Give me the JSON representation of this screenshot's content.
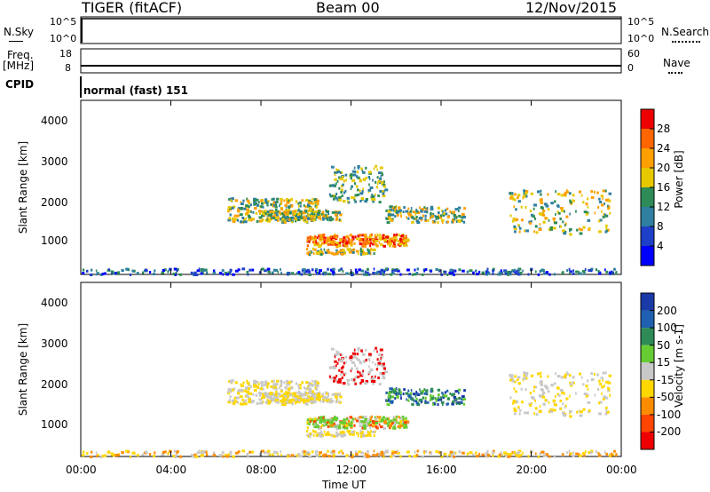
{
  "header": {
    "station": "TIGER (fitACF)",
    "beam": "Beam 00",
    "date": "12/Nov/2015"
  },
  "top_panels": {
    "nsky_label": "N.Sky",
    "nsky_ticks": [
      "10^5",
      "10^0"
    ],
    "nsearch_label": "N.Search",
    "nsearch_ticks": [
      "10^5",
      "10^0"
    ],
    "freq_label": "Freq.",
    "freq_unit": "[MHz]",
    "freq_ticks": [
      "18",
      "8"
    ],
    "nave_label": "Nave",
    "nave_ticks": [
      "60",
      "0"
    ],
    "cpid_label": "CPID",
    "cpid_value": "normal (fast) 151"
  },
  "chart_data": [
    {
      "type": "heatmap",
      "name": "power",
      "ylabel": "Slant Range [km]",
      "yticks": [
        "4000",
        "3000",
        "2000",
        "1000"
      ],
      "yrange": [
        180,
        4500
      ],
      "colorbar_label": "Power [dB]",
      "colorbar_ticks": [
        "28",
        "24",
        "20",
        "16",
        "12",
        "8",
        "4"
      ],
      "colorbar_colors": [
        "#ee0000",
        "#ff6600",
        "#ff9f00",
        "#e6c800",
        "#2e8b57",
        "#2f7fa0",
        "#1e3fc8",
        "#0000ff"
      ]
    },
    {
      "type": "heatmap",
      "name": "velocity",
      "ylabel": "Slant Range [km]",
      "yticks": [
        "4000",
        "3000",
        "2000",
        "1000"
      ],
      "yrange": [
        180,
        4500
      ],
      "colorbar_label": "Velocity [m s-1]",
      "colorbar_ticks": [
        "200",
        "100",
        "50",
        "15",
        "-15",
        "-50",
        "-100",
        "-200"
      ],
      "colorbar_colors": [
        "#1a3aa8",
        "#2060b0",
        "#2e8b57",
        "#66cc33",
        "#c8c8c8",
        "#ffd700",
        "#ff8c00",
        "#ff4500",
        "#ee0000"
      ]
    }
  ],
  "xaxis": {
    "label": "Time UT",
    "ticks": [
      "00:00",
      "04:00",
      "08:00",
      "12:00",
      "16:00",
      "20:00",
      "00:00"
    ]
  }
}
